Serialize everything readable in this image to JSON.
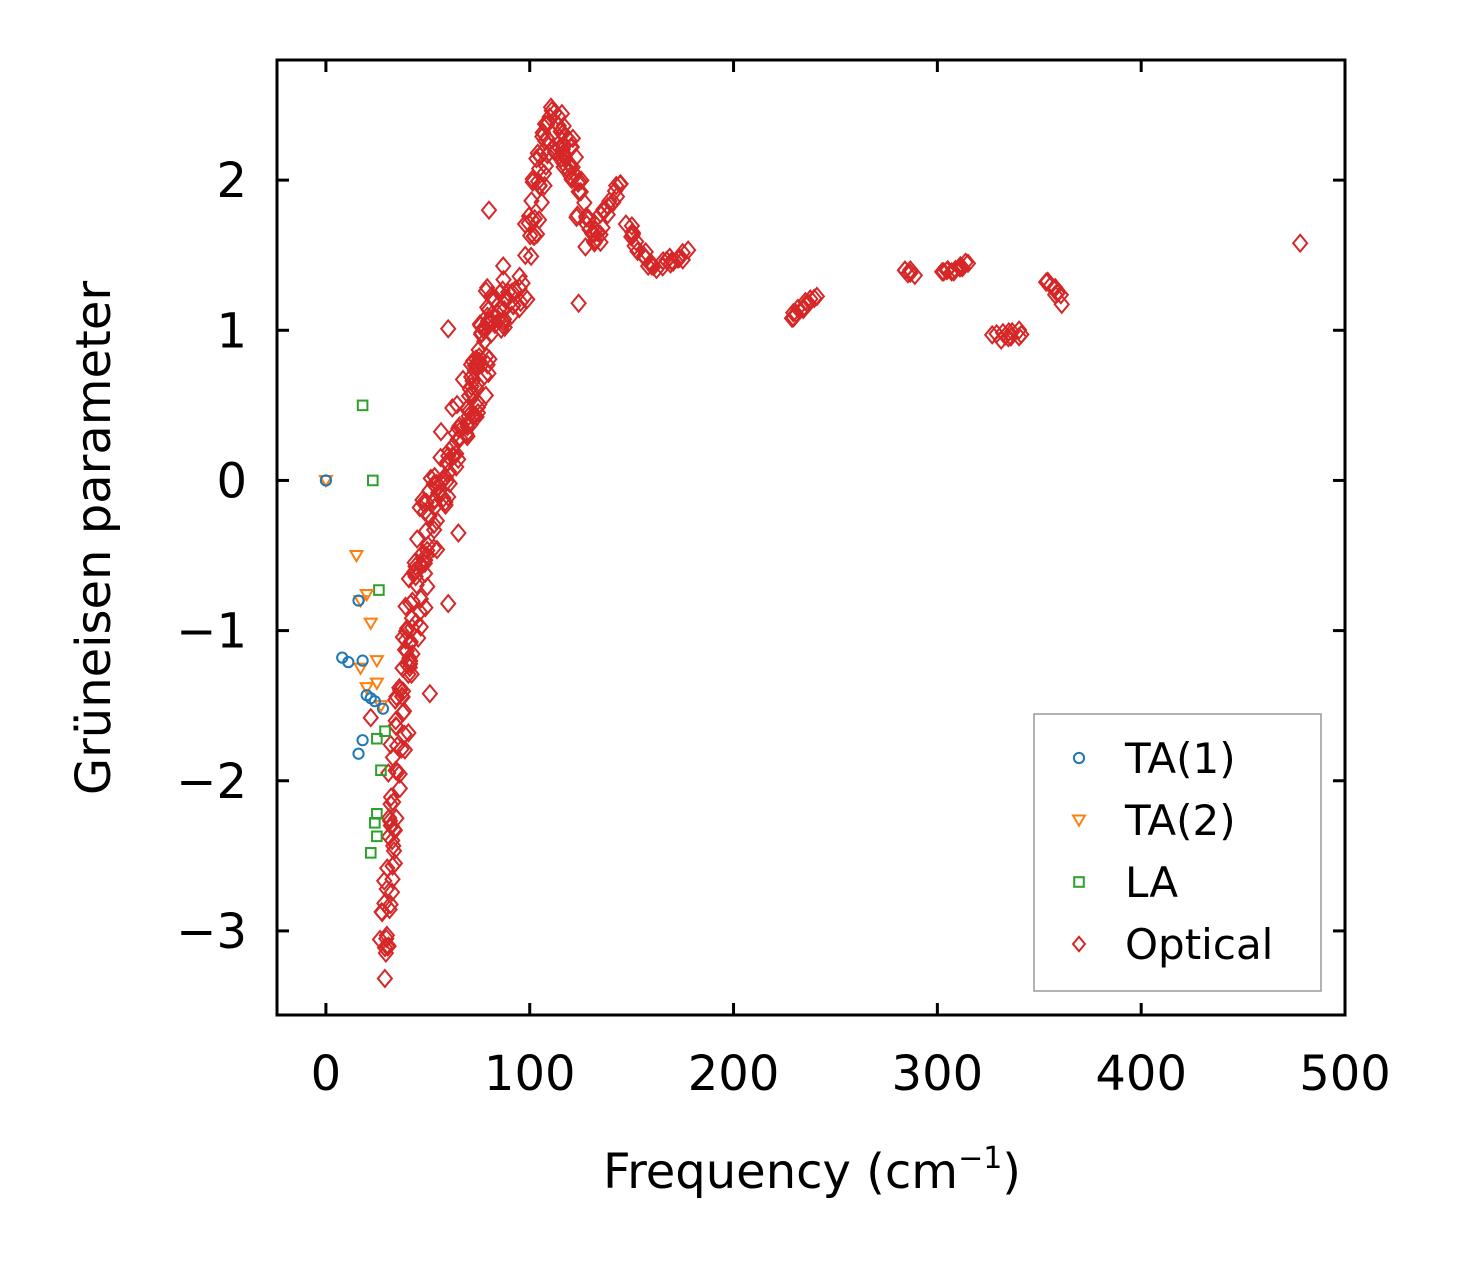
{
  "chart_data": {
    "type": "scatter",
    "xlabel": "Frequency (cm",
    "xlabel_sup": "−1",
    "xlabel_close": ")",
    "ylabel": "Grüneisen parameter",
    "xlim": [
      -24,
      500
    ],
    "ylim": [
      -3.56,
      2.8
    ],
    "xticks": [
      0,
      100,
      200,
      300,
      400,
      500
    ],
    "xtick_labels": [
      "0",
      "100",
      "200",
      "300",
      "400",
      "500"
    ],
    "yticks": [
      2,
      1,
      0,
      -1,
      -2,
      -3
    ],
    "ytick_labels": [
      "2",
      "1",
      "0",
      "−1",
      "−2",
      "−3"
    ],
    "legend_position": "lower-right",
    "series": [
      {
        "name": "TA(1)",
        "marker": "circle",
        "color": "#1f77b4",
        "points": [
          [
            0,
            0
          ],
          [
            16,
            -0.8
          ],
          [
            8,
            -1.18
          ],
          [
            11,
            -1.21
          ],
          [
            18,
            -1.2
          ],
          [
            20,
            -1.43
          ],
          [
            22,
            -1.45
          ],
          [
            24,
            -1.47
          ],
          [
            28,
            -1.52
          ],
          [
            18,
            -1.73
          ],
          [
            16,
            -1.82
          ]
        ]
      },
      {
        "name": "TA(2)",
        "marker": "triangle-down",
        "color": "#ff7f0e",
        "points": [
          [
            0,
            0
          ],
          [
            15,
            -0.5
          ],
          [
            20,
            -0.76
          ],
          [
            17,
            -0.8
          ],
          [
            22,
            -0.95
          ],
          [
            25,
            -1.2
          ],
          [
            17,
            -1.25
          ],
          [
            20,
            -1.38
          ],
          [
            25,
            -1.35
          ],
          [
            27,
            -1.5
          ]
        ]
      },
      {
        "name": "LA",
        "marker": "square",
        "color": "#2ca02c",
        "points": [
          [
            18,
            0.5
          ],
          [
            23,
            0
          ],
          [
            26,
            -0.73
          ],
          [
            25,
            -1.72
          ],
          [
            29,
            -1.67
          ],
          [
            27,
            -1.93
          ],
          [
            25,
            -2.22
          ],
          [
            24,
            -2.28
          ],
          [
            25,
            -2.37
          ],
          [
            22,
            -2.48
          ]
        ]
      },
      {
        "name": "Optical",
        "marker": "diamond",
        "color": "#d62728",
        "points": [],
        "segments": [
          {
            "from": [
              28,
              -3.27
            ],
            "to": [
              32,
              -2.3
            ],
            "n": 25,
            "jitter": [
              3,
              0.12
            ]
          },
          {
            "from": [
              32,
              -2.3
            ],
            "to": [
              40,
              -1.2
            ],
            "n": 40,
            "jitter": [
              4,
              0.12
            ]
          },
          {
            "from": [
              40,
              -1.2
            ],
            "to": [
              50,
              -0.3
            ],
            "n": 45,
            "jitter": [
              5,
              0.15
            ]
          },
          {
            "from": [
              50,
              -0.3
            ],
            "to": [
              65,
              0.3
            ],
            "n": 45,
            "jitter": [
              6,
              0.15
            ]
          },
          {
            "from": [
              65,
              0.3
            ],
            "to": [
              78,
              0.8
            ],
            "n": 40,
            "jitter": [
              5,
              0.15
            ]
          },
          {
            "from": [
              75,
              0.8
            ],
            "to": [
              85,
              1.3
            ],
            "n": 40,
            "jitter": [
              5,
              0.15
            ]
          },
          {
            "from": [
              85,
              1.1
            ],
            "to": [
              100,
              1.4
            ],
            "n": 20,
            "jitter": [
              4,
              0.12
            ]
          },
          {
            "from": [
              100,
              1.6
            ],
            "to": [
              108,
              2.3
            ],
            "n": 30,
            "jitter": [
              3,
              0.15
            ]
          },
          {
            "from": [
              108,
              2.4
            ],
            "to": [
              120,
              2.1
            ],
            "n": 35,
            "jitter": [
              4,
              0.15
            ]
          },
          {
            "from": [
              118,
              2.2
            ],
            "to": [
              130,
              1.6
            ],
            "n": 25,
            "jitter": [
              3,
              0.1
            ]
          },
          {
            "from": [
              130,
              1.55
            ],
            "to": [
              145,
              2.0
            ],
            "n": 20,
            "jitter": [
              2,
              0.06
            ]
          },
          {
            "from": [
              148,
              1.7
            ],
            "to": [
              160,
              1.42
            ],
            "n": 15,
            "jitter": [
              2,
              0.04
            ]
          },
          {
            "from": [
              160,
              1.42
            ],
            "to": [
              178,
              1.52
            ],
            "n": 15,
            "jitter": [
              2,
              0.03
            ]
          },
          {
            "from": [
              228,
              1.08
            ],
            "to": [
              240,
              1.23
            ],
            "n": 12,
            "jitter": [
              1,
              0.02
            ]
          },
          {
            "from": [
              284,
              1.41
            ],
            "to": [
              288,
              1.37
            ],
            "n": 6,
            "jitter": [
              1,
              0.02
            ]
          },
          {
            "from": [
              303,
              1.38
            ],
            "to": [
              314,
              1.44
            ],
            "n": 12,
            "jitter": [
              1.5,
              0.02
            ]
          },
          {
            "from": [
              328,
              0.96
            ],
            "to": [
              342,
              0.98
            ],
            "n": 12,
            "jitter": [
              2,
              0.03
            ]
          },
          {
            "from": [
              354,
              1.34
            ],
            "to": [
              362,
              1.2
            ],
            "n": 10,
            "jitter": [
              1,
              0.03
            ]
          }
        ],
        "outliers": [
          [
            80,
            1.8
          ],
          [
            60,
            1.01
          ],
          [
            124,
            1.18
          ],
          [
            478,
            1.58
          ],
          [
            22,
            -1.58
          ],
          [
            51,
            -1.42
          ],
          [
            60,
            -0.82
          ],
          [
            65,
            -0.35
          ]
        ]
      }
    ]
  }
}
